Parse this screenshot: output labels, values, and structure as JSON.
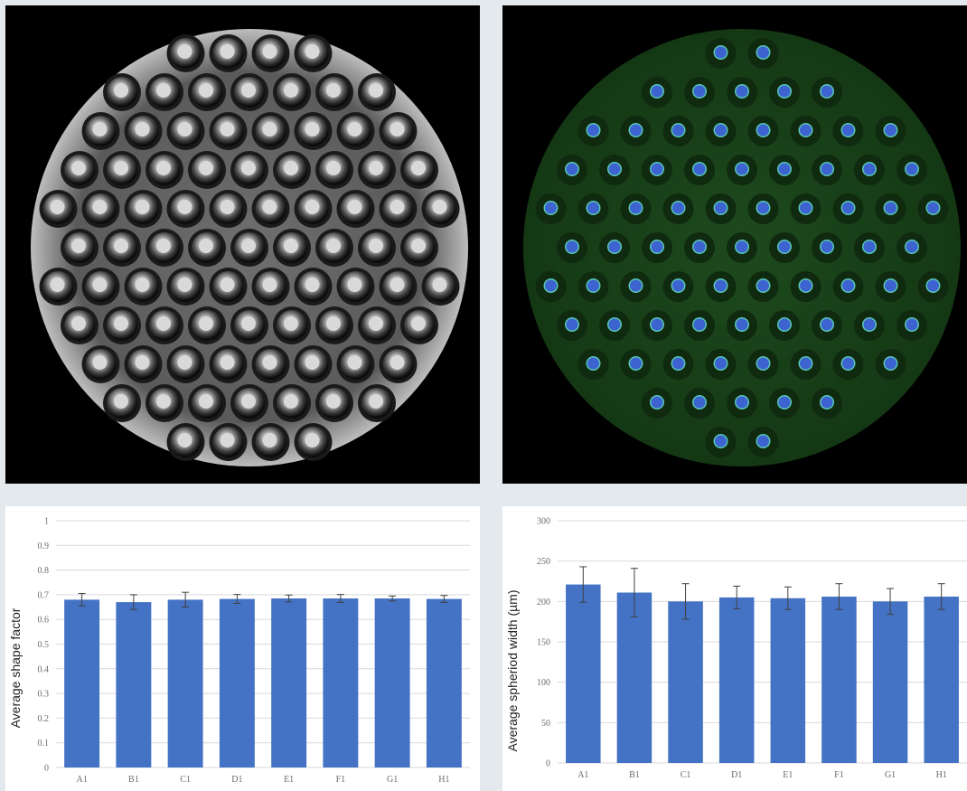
{
  "images": [
    {
      "name": "brightfield-microwell-array",
      "type": "grayscale"
    },
    {
      "name": "fluorescence-microwell-array",
      "type": "fluorescence",
      "colors": {
        "background": "#163d16",
        "spheroid": "#3d63d1",
        "rim": "#58c6b4"
      }
    }
  ],
  "chart_data": [
    {
      "type": "bar",
      "title": "",
      "xlabel": "",
      "ylabel": "Average shape factor",
      "categories": [
        "A1",
        "B1",
        "C1",
        "D1",
        "E1",
        "F1",
        "G1",
        "H1"
      ],
      "series": [
        {
          "values": [
            0.68,
            0.67,
            0.68,
            0.683,
            0.685,
            0.685,
            0.685,
            0.683
          ]
        }
      ],
      "errors": [
        0.025,
        0.03,
        0.03,
        0.018,
        0.014,
        0.016,
        0.01,
        0.014
      ],
      "ylim": [
        0,
        1
      ],
      "yticks": [
        "0",
        "0.1",
        "0.2",
        "0.3",
        "0.4",
        "0.5",
        "0.6",
        "0.7",
        "0.8",
        "0.9",
        "1"
      ],
      "grid": true,
      "bar_color": "#4472c4"
    },
    {
      "type": "bar",
      "title": "",
      "xlabel": "",
      "ylabel": "Average spheriod width (µm)",
      "categories": [
        "A1",
        "B1",
        "C1",
        "D1",
        "E1",
        "F1",
        "G1",
        "H1"
      ],
      "series": [
        {
          "values": [
            221,
            211,
            200,
            205,
            204,
            206,
            200,
            206
          ]
        }
      ],
      "errors": [
        22,
        30,
        22,
        14,
        14,
        16,
        16,
        16
      ],
      "ylim": [
        0,
        300
      ],
      "yticks": [
        "0",
        "50",
        "100",
        "150",
        "200",
        "250",
        "300"
      ],
      "grid": true,
      "bar_color": "#4472c4"
    }
  ]
}
